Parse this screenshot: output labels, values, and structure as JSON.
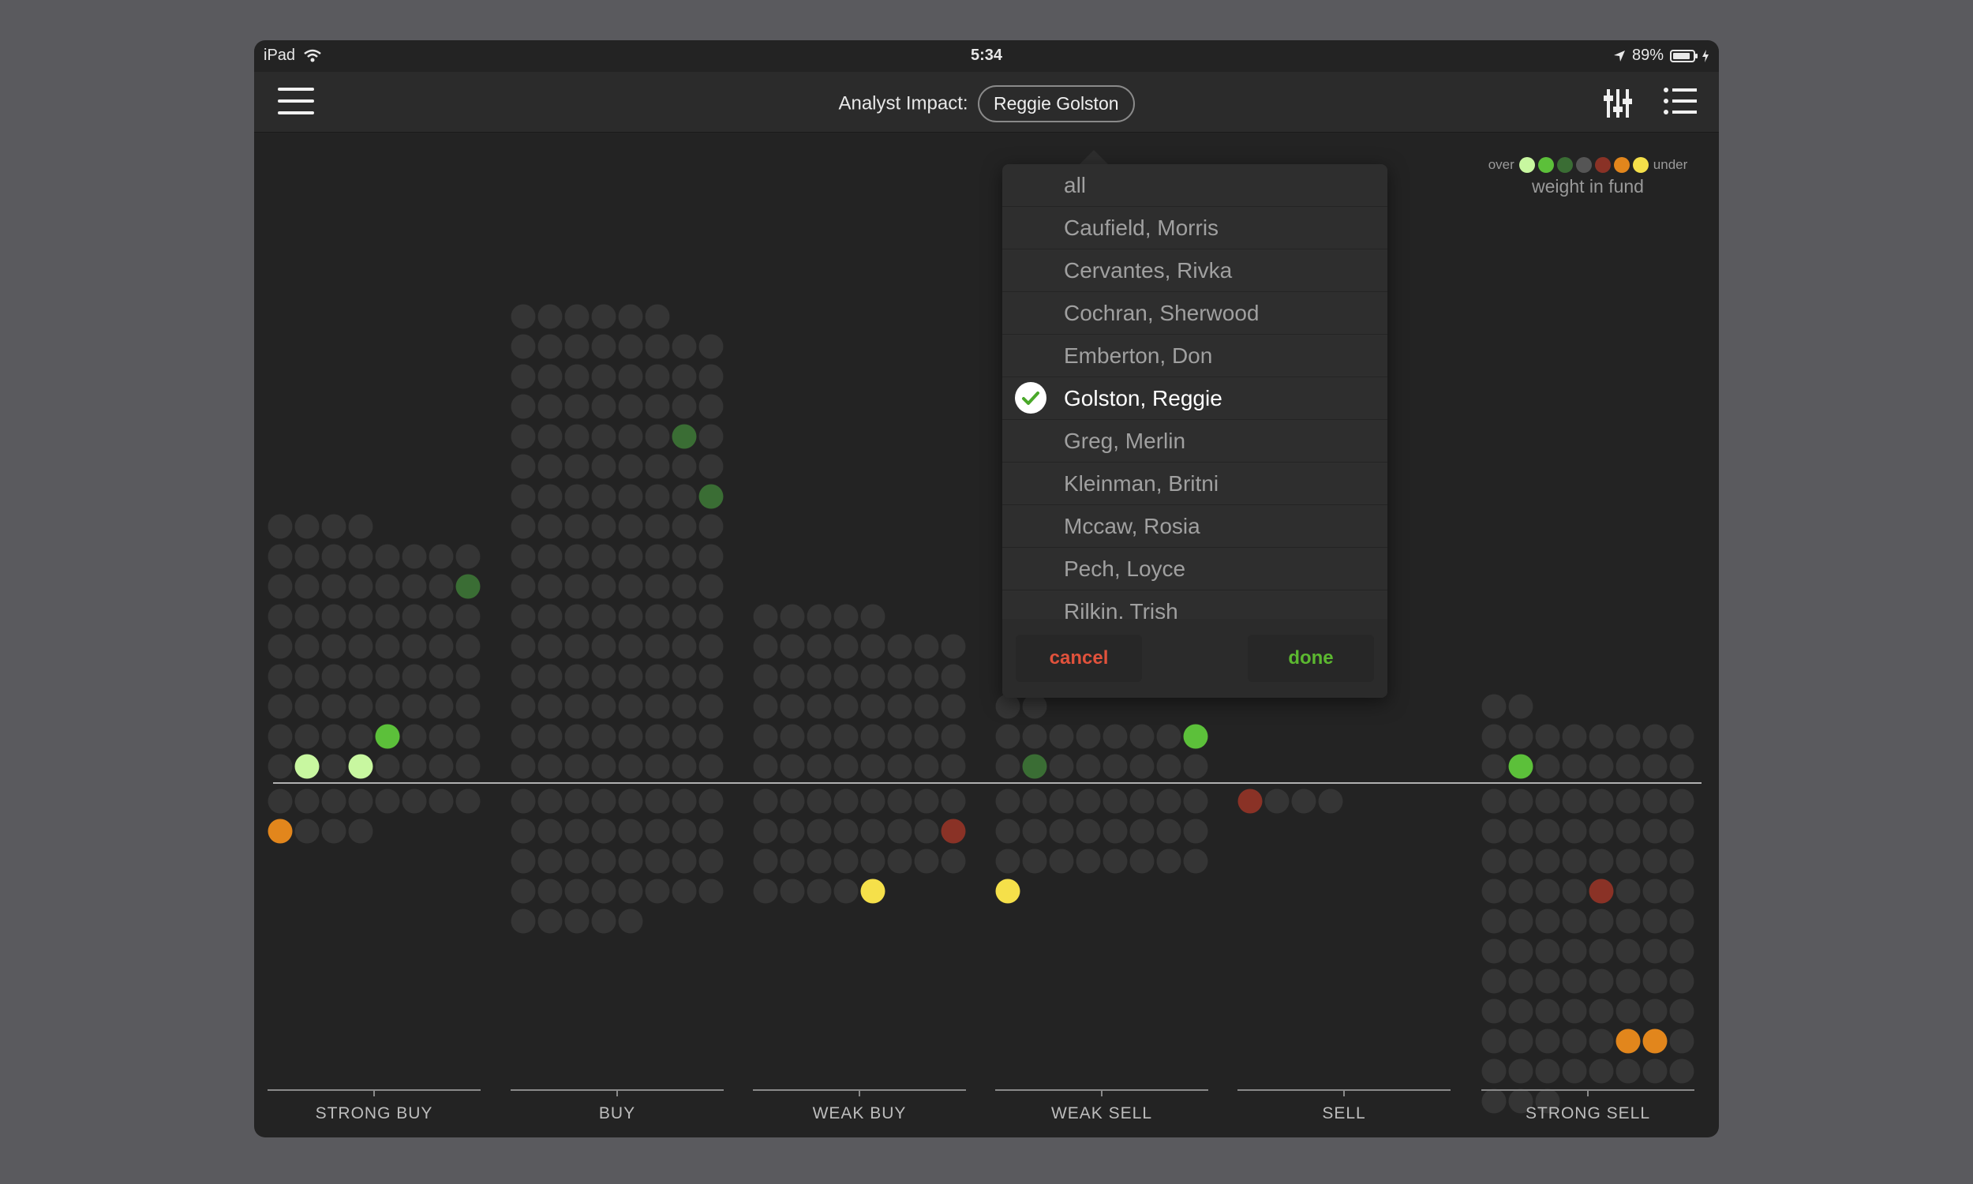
{
  "status_bar": {
    "device": "iPad",
    "time": "5:34",
    "battery": "89%",
    "battery_level": 0.89
  },
  "nav": {
    "title_label": "Analyst Impact:",
    "selected_analyst": "Reggie Golston"
  },
  "legend": {
    "over_label": "over",
    "under_label": "under",
    "caption": "weight in fund",
    "colors": [
      "#c8f7a0",
      "#5cc03a",
      "#3a6d34",
      "#555555",
      "#8a3226",
      "#e2861c",
      "#f5e04a"
    ]
  },
  "chart_data": {
    "type": "dot-matrix",
    "categories": [
      "STRONG BUY",
      "BUY",
      "WEAK BUY",
      "WEAK SELL",
      "SELL",
      "STRONG SELL"
    ],
    "columns_per_group": 8,
    "series": [
      {
        "category": "STRONG BUY",
        "above_count": 68,
        "below_count": 12,
        "highlights": [
          {
            "side": "above",
            "index": 1,
            "color": "light_green"
          },
          {
            "side": "above",
            "index": 3,
            "color": "light_green"
          },
          {
            "side": "above",
            "index": 12,
            "color": "green"
          },
          {
            "side": "above",
            "index": 55,
            "color": "dark_green"
          },
          {
            "side": "below",
            "index": 8,
            "color": "orange"
          }
        ]
      },
      {
        "category": "BUY",
        "above_count": 126,
        "below_count": 37,
        "highlights": [
          {
            "side": "above",
            "index": 79,
            "color": "dark_green"
          },
          {
            "side": "above",
            "index": 94,
            "color": "dark_green"
          }
        ]
      },
      {
        "category": "WEAK BUY",
        "above_count": 45,
        "below_count": 29,
        "highlights": [
          {
            "side": "below",
            "index": 15,
            "color": "red"
          },
          {
            "side": "below",
            "index": 28,
            "color": "yellow"
          }
        ]
      },
      {
        "category": "WEAK SELL",
        "above_count": 18,
        "below_count": 25,
        "highlights": [
          {
            "side": "above",
            "index": 1,
            "color": "dark_green"
          },
          {
            "side": "above",
            "index": 15,
            "color": "green"
          },
          {
            "side": "below",
            "index": 24,
            "color": "yellow"
          }
        ]
      },
      {
        "category": "SELL",
        "above_count": 0,
        "below_count": 4,
        "highlights": [
          {
            "side": "below",
            "index": 0,
            "color": "red"
          }
        ]
      },
      {
        "category": "STRONG SELL",
        "above_count": 18,
        "below_count": 83,
        "highlights": [
          {
            "side": "above",
            "index": 1,
            "color": "green"
          },
          {
            "side": "below",
            "index": 28,
            "color": "red"
          },
          {
            "side": "below",
            "index": 69,
            "color": "orange"
          },
          {
            "side": "below",
            "index": 70,
            "color": "orange"
          }
        ]
      }
    ],
    "color_map": {
      "base": "#353535",
      "light_green": "#c8f7a0",
      "green": "#5cc03a",
      "dark_green": "#3a6d34",
      "red": "#8a3226",
      "orange": "#e2861c",
      "yellow": "#f5e04a"
    }
  },
  "picker": {
    "items": [
      {
        "label": "all"
      },
      {
        "label": "Caufield, Morris"
      },
      {
        "label": "Cervantes, Rivka"
      },
      {
        "label": "Cochran, Sherwood"
      },
      {
        "label": "Emberton, Don"
      },
      {
        "label": "Golston, Reggie",
        "selected": true
      },
      {
        "label": "Greg, Merlin"
      },
      {
        "label": "Kleinman, Britni"
      },
      {
        "label": "Mccaw, Rosia"
      },
      {
        "label": "Pech, Loyce"
      },
      {
        "label": "Rilkin, Trish"
      }
    ],
    "cancel": "cancel",
    "done": "done"
  }
}
